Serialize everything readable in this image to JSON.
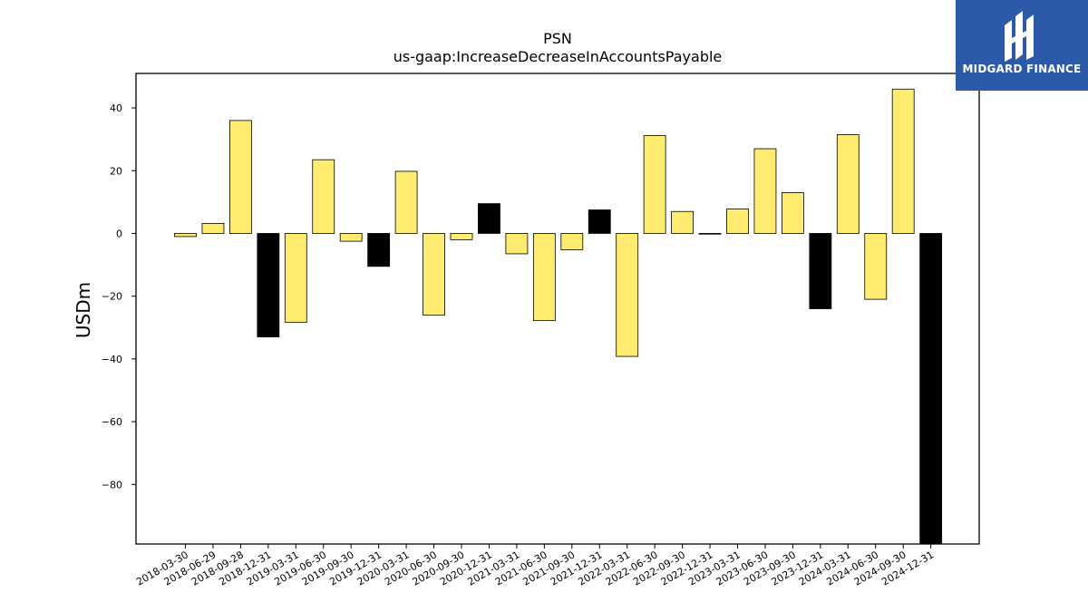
{
  "chart_data": {
    "type": "bar",
    "title": "PSN",
    "subtitle": "us-gaap:IncreaseDecreaseInAccountsPayable",
    "xlabel": "",
    "ylabel": "USDm",
    "ylim": [
      -99,
      51
    ],
    "yticks": [
      40,
      20,
      0,
      -20,
      -40,
      -60,
      -80
    ],
    "ytick_labels": [
      "40",
      "20",
      "0",
      "−20",
      "−40",
      "−60",
      "−80"
    ],
    "grid": false,
    "categories": [
      "2018-03-30",
      "2018-06-29",
      "2018-09-28",
      "2018-12-31",
      "2019-03-31",
      "2019-06-30",
      "2019-09-30",
      "2019-12-31",
      "2020-03-31",
      "2020-06-30",
      "2020-09-30",
      "2020-12-31",
      "2021-03-31",
      "2021-06-30",
      "2021-09-30",
      "2021-12-31",
      "2022-03-31",
      "2022-06-30",
      "2022-09-30",
      "2022-12-31",
      "2023-03-31",
      "2023-06-30",
      "2023-09-30",
      "2023-12-31",
      "2024-03-31",
      "2024-06-30",
      "2024-09-30",
      "2024-12-31"
    ],
    "values": [
      -1,
      3.2,
      36,
      -33,
      -28.3,
      23.5,
      -2.5,
      -10.5,
      19.8,
      -26,
      -2,
      9.5,
      -6.5,
      -27.8,
      -5.2,
      7.5,
      -39.2,
      31.2,
      7,
      0,
      7.8,
      27,
      13,
      -24,
      31.5,
      -21,
      46,
      -99
    ],
    "bar_colors": [
      "#ffeb70",
      "#ffeb70",
      "#ffeb70",
      "#000000",
      "#ffeb70",
      "#ffeb70",
      "#ffeb70",
      "#000000",
      "#ffeb70",
      "#ffeb70",
      "#ffeb70",
      "#000000",
      "#ffeb70",
      "#ffeb70",
      "#ffeb70",
      "#000000",
      "#ffeb70",
      "#ffeb70",
      "#ffeb70",
      "#000000",
      "#ffeb70",
      "#ffeb70",
      "#ffeb70",
      "#000000",
      "#ffeb70",
      "#ffeb70",
      "#ffeb70",
      "#000000"
    ]
  },
  "logo": {
    "text": "MIDGARD FINANCE",
    "background": "#2d5aa8"
  }
}
